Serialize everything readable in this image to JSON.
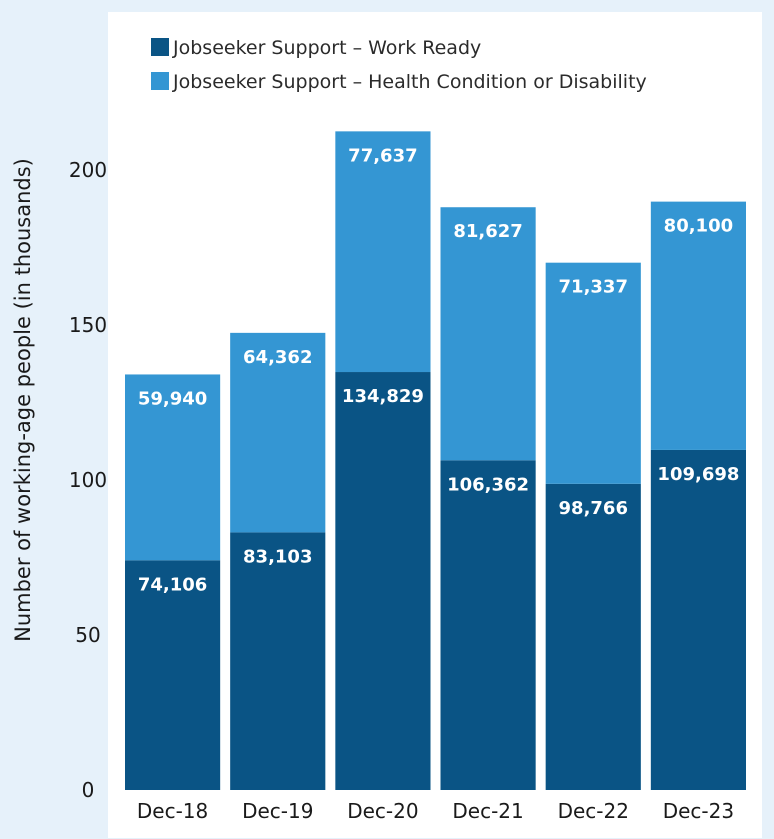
{
  "chart_data": {
    "type": "bar",
    "stacked": true,
    "title": "",
    "xlabel": "",
    "ylabel": "Number of working-age people (in thousands)",
    "ylim": [
      0,
      215
    ],
    "yticks": [
      0,
      50,
      100,
      150,
      200
    ],
    "grid": false,
    "legend_position": "top-left",
    "categories": [
      "Dec-18",
      "Dec-19",
      "Dec-20",
      "Dec-21",
      "Dec-22",
      "Dec-23"
    ],
    "series": [
      {
        "name": "Jobseeker Support – Work Ready",
        "color": "#0a5485",
        "values": [
          74.106,
          83.103,
          134.829,
          106.362,
          98.766,
          109.698
        ],
        "data_labels": [
          "74,106",
          "83,103",
          "134,829",
          "106,362",
          "98,766",
          "109,698"
        ]
      },
      {
        "name": "Jobseeker Support – Health Condition or Disability",
        "color": "#3496d3",
        "values": [
          59.94,
          64.362,
          77.637,
          81.627,
          71.337,
          80.1
        ],
        "data_labels": [
          "59,940",
          "64,362",
          "77,637",
          "81,627",
          "71,337",
          "80,100"
        ]
      }
    ]
  }
}
